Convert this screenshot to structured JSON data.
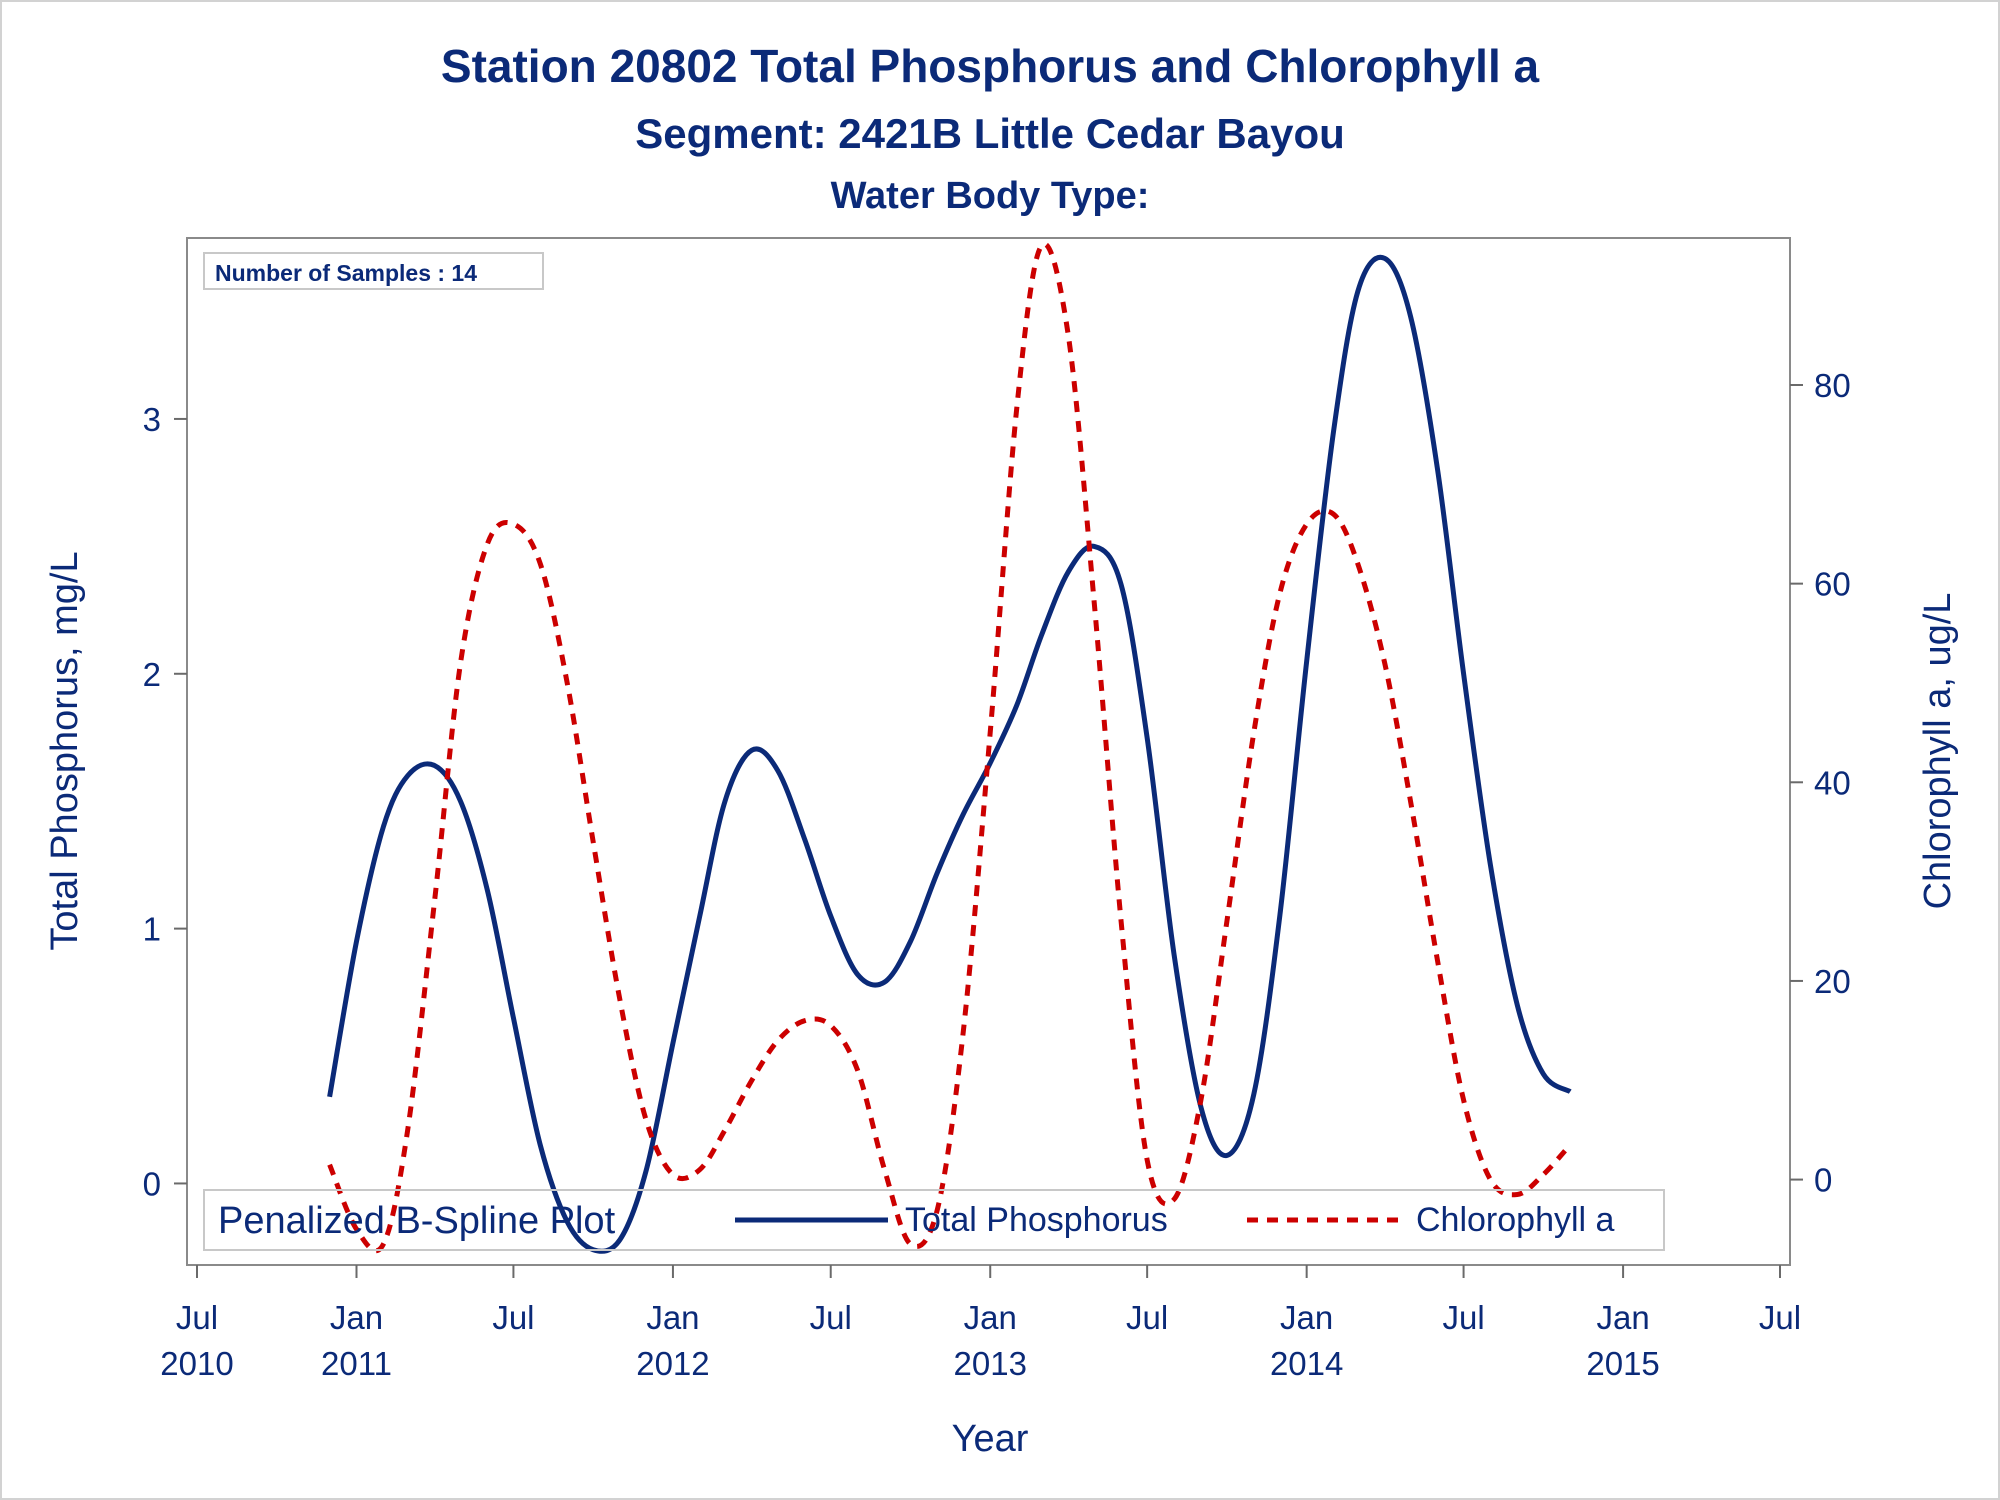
{
  "chart_data": {
    "type": "line",
    "title": "Station 20802  Total Phosphorus and Chlorophyll a",
    "subtitle": "Segment: 2421B  Little Cedar Bayou",
    "subtitle2": "Water Body Type:",
    "xlabel": "Year",
    "ylabel": "Total Phosphorus, mg/L",
    "y2label": "Chlorophyll a, ug/L",
    "xlim": [
      "2010-07-01",
      "2015-07-01"
    ],
    "ylim": [
      -0.32,
      3.71
    ],
    "y2lim": [
      -8.6,
      94.8
    ],
    "x_ticks": [
      {
        "date": "2010-07-01",
        "month": "Jul",
        "year": "2010"
      },
      {
        "date": "2011-01-01",
        "month": "Jan",
        "year": "2011"
      },
      {
        "date": "2011-07-01",
        "month": "Jul",
        "year": ""
      },
      {
        "date": "2012-01-01",
        "month": "Jan",
        "year": "2012"
      },
      {
        "date": "2012-07-01",
        "month": "Jul",
        "year": ""
      },
      {
        "date": "2013-01-01",
        "month": "Jan",
        "year": "2013"
      },
      {
        "date": "2013-07-01",
        "month": "Jul",
        "year": ""
      },
      {
        "date": "2014-01-01",
        "month": "Jan",
        "year": "2014"
      },
      {
        "date": "2014-07-01",
        "month": "Jul",
        "year": ""
      },
      {
        "date": "2015-01-01",
        "month": "Jan",
        "year": "2015"
      },
      {
        "date": "2015-07-01",
        "month": "Jul",
        "year": ""
      }
    ],
    "y_ticks": [
      "0",
      "1",
      "2",
      "3"
    ],
    "y2_ticks": [
      "0",
      "20",
      "40",
      "60",
      "80"
    ],
    "annotation": "Number of Samples : 14",
    "legend_position": "bottom-inside",
    "legend_title": "Penalized B-Spline Plot",
    "grid": false,
    "series": [
      {
        "name": "Total Phosphorus",
        "axis": "left",
        "color": "#0b2a78",
        "style": "solid",
        "points": [
          [
            "2010-12-01",
            0.34
          ],
          [
            "2011-01-01",
            0.95
          ],
          [
            "2011-02-01",
            1.4
          ],
          [
            "2011-03-01",
            1.6
          ],
          [
            "2011-04-01",
            1.64
          ],
          [
            "2011-05-01",
            1.5
          ],
          [
            "2011-06-01",
            1.15
          ],
          [
            "2011-07-01",
            0.65
          ],
          [
            "2011-08-01",
            0.15
          ],
          [
            "2011-09-01",
            -0.15
          ],
          [
            "2011-10-01",
            -0.26
          ],
          [
            "2011-11-01",
            -0.22
          ],
          [
            "2011-12-01",
            0.05
          ],
          [
            "2012-01-01",
            0.55
          ],
          [
            "2012-02-01",
            1.05
          ],
          [
            "2012-03-01",
            1.5
          ],
          [
            "2012-04-01",
            1.7
          ],
          [
            "2012-05-01",
            1.62
          ],
          [
            "2012-06-01",
            1.35
          ],
          [
            "2012-07-01",
            1.05
          ],
          [
            "2012-08-01",
            0.82
          ],
          [
            "2012-09-01",
            0.79
          ],
          [
            "2012-10-01",
            0.95
          ],
          [
            "2012-11-01",
            1.22
          ],
          [
            "2012-12-01",
            1.45
          ],
          [
            "2013-01-01",
            1.65
          ],
          [
            "2013-02-01",
            1.88
          ],
          [
            "2013-03-01",
            2.15
          ],
          [
            "2013-04-01",
            2.4
          ],
          [
            "2013-05-01",
            2.5
          ],
          [
            "2013-06-01",
            2.35
          ],
          [
            "2013-07-01",
            1.75
          ],
          [
            "2013-08-01",
            0.9
          ],
          [
            "2013-09-01",
            0.3
          ],
          [
            "2013-10-01",
            0.11
          ],
          [
            "2013-11-01",
            0.35
          ],
          [
            "2013-12-01",
            1.05
          ],
          [
            "2014-01-01",
            2.05
          ],
          [
            "2014-02-01",
            2.95
          ],
          [
            "2014-03-01",
            3.5
          ],
          [
            "2014-04-01",
            3.63
          ],
          [
            "2014-05-01",
            3.4
          ],
          [
            "2014-06-01",
            2.8
          ],
          [
            "2014-07-01",
            2.0
          ],
          [
            "2014-08-01",
            1.25
          ],
          [
            "2014-09-01",
            0.7
          ],
          [
            "2014-10-01",
            0.43
          ],
          [
            "2014-11-01",
            0.36
          ]
        ]
      },
      {
        "name": "Chlorophyll a",
        "axis": "right",
        "color": "#cc0000",
        "style": "dashed",
        "points": [
          [
            "2010-12-01",
            1.5
          ],
          [
            "2011-01-01",
            -5.0
          ],
          [
            "2011-02-01",
            -6.5
          ],
          [
            "2011-03-01",
            5.0
          ],
          [
            "2011-04-01",
            28.0
          ],
          [
            "2011-05-01",
            52.0
          ],
          [
            "2011-06-01",
            64.0
          ],
          [
            "2011-07-01",
            66.0
          ],
          [
            "2011-08-01",
            62.0
          ],
          [
            "2011-09-01",
            50.0
          ],
          [
            "2011-10-01",
            34.0
          ],
          [
            "2011-11-01",
            18.0
          ],
          [
            "2011-12-01",
            6.0
          ],
          [
            "2012-01-01",
            0.5
          ],
          [
            "2012-02-01",
            1.0
          ],
          [
            "2012-03-01",
            5.0
          ],
          [
            "2012-04-01",
            10.0
          ],
          [
            "2012-05-01",
            14.0
          ],
          [
            "2012-06-01",
            16.0
          ],
          [
            "2012-07-01",
            15.5
          ],
          [
            "2012-08-01",
            11.0
          ],
          [
            "2012-09-01",
            1.0
          ],
          [
            "2012-10-01",
            -6.5
          ],
          [
            "2012-11-01",
            -3.0
          ],
          [
            "2012-12-01",
            15.0
          ],
          [
            "2013-01-01",
            45.0
          ],
          [
            "2013-02-01",
            78.0
          ],
          [
            "2013-03-01",
            94.0
          ],
          [
            "2013-04-01",
            85.0
          ],
          [
            "2013-05-01",
            58.0
          ],
          [
            "2013-06-01",
            26.0
          ],
          [
            "2013-07-01",
            2.0
          ],
          [
            "2013-08-01",
            -2.0
          ],
          [
            "2013-09-01",
            8.0
          ],
          [
            "2013-10-01",
            26.0
          ],
          [
            "2013-11-01",
            45.0
          ],
          [
            "2013-12-01",
            59.0
          ],
          [
            "2014-01-01",
            66.0
          ],
          [
            "2014-02-01",
            67.0
          ],
          [
            "2014-03-01",
            62.0
          ],
          [
            "2014-04-01",
            52.0
          ],
          [
            "2014-05-01",
            38.0
          ],
          [
            "2014-06-01",
            22.0
          ],
          [
            "2014-07-01",
            8.0
          ],
          [
            "2014-08-01",
            0.0
          ],
          [
            "2014-09-01",
            -1.5
          ],
          [
            "2014-10-01",
            0.5
          ],
          [
            "2014-11-01",
            3.5
          ]
        ]
      }
    ]
  }
}
